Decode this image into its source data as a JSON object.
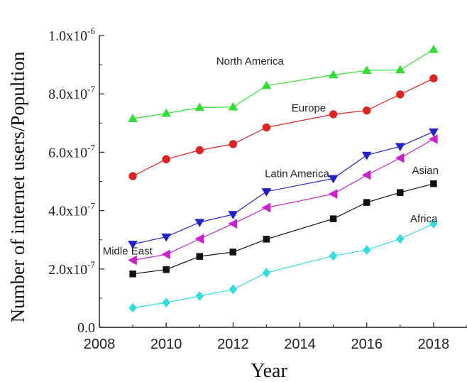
{
  "chart_data": {
    "type": "line",
    "xlabel": "Year",
    "ylabel": "Number of internet users/Popultion",
    "xlim": [
      2008,
      2019
    ],
    "ylim": [
      0,
      1e-06
    ],
    "x_ticks": [
      2008,
      2010,
      2012,
      2014,
      2016,
      2018
    ],
    "x_tick_labels": [
      "2008",
      "2010",
      "2012",
      "2014",
      "2016",
      "2018"
    ],
    "y_ticks": [
      0,
      2e-07,
      4e-07,
      6e-07,
      8e-07,
      1e-06
    ],
    "y_tick_labels": [
      {
        "mantissa": "0.0",
        "exp": ""
      },
      {
        "mantissa": "2.0x10",
        "exp": "-7"
      },
      {
        "mantissa": "4.0x10",
        "exp": "-7"
      },
      {
        "mantissa": "6.0x10",
        "exp": "-7"
      },
      {
        "mantissa": "8.0x10",
        "exp": "-7"
      },
      {
        "mantissa": "1.0x10",
        "exp": "-6"
      }
    ],
    "grid": false,
    "x": [
      2009,
      2010,
      2011,
      2012,
      2013,
      2015,
      2016,
      2017,
      2018
    ],
    "series": [
      {
        "name": "North America",
        "color": "#33dd33",
        "marker": "triangle-up",
        "values": [
          7.15e-07,
          7.33e-07,
          7.53e-07,
          7.55e-07,
          8.28e-07,
          8.65e-07,
          8.8e-07,
          8.82e-07,
          9.52e-07
        ]
      },
      {
        "name": "Europe",
        "color": "#dd2222",
        "marker": "circle",
        "values": [
          5.18e-07,
          5.76e-07,
          6.07e-07,
          6.28e-07,
          6.85e-07,
          7.3e-07,
          7.43e-07,
          7.98e-07,
          8.53e-07
        ]
      },
      {
        "name": "Latin America",
        "color": "#2222cc",
        "marker": "triangle-down",
        "values": [
          2.85e-07,
          3.1e-07,
          3.6e-07,
          3.87e-07,
          4.65e-07,
          5.1e-07,
          5.9e-07,
          6.2e-07,
          6.7e-07
        ]
      },
      {
        "name": "Midle East",
        "color": "#cc22cc",
        "marker": "triangle-left",
        "values": [
          2.3e-07,
          2.5e-07,
          3.03e-07,
          3.55e-07,
          4.1e-07,
          4.57e-07,
          5.22e-07,
          5.8e-07,
          6.45e-07
        ]
      },
      {
        "name": "Asian",
        "color": "#111111",
        "marker": "square",
        "values": [
          1.83e-07,
          1.98e-07,
          2.43e-07,
          2.58e-07,
          3.02e-07,
          3.72e-07,
          4.28e-07,
          4.62e-07,
          4.92e-07
        ]
      },
      {
        "name": "Africa",
        "color": "#33dddd",
        "marker": "diamond",
        "values": [
          6.7e-08,
          8.5e-08,
          1.07e-07,
          1.3e-07,
          1.87e-07,
          2.45e-07,
          2.65e-07,
          3.03e-07,
          3.55e-07
        ]
      }
    ],
    "annotations": [
      {
        "series": 0,
        "text": "North America"
      },
      {
        "series": 1,
        "text": "Europe"
      },
      {
        "series": 2,
        "text": "Latin America"
      },
      {
        "series": 3,
        "text": "Midle East"
      },
      {
        "series": 4,
        "text": "Asian"
      },
      {
        "series": 5,
        "text": "Africa"
      }
    ]
  }
}
